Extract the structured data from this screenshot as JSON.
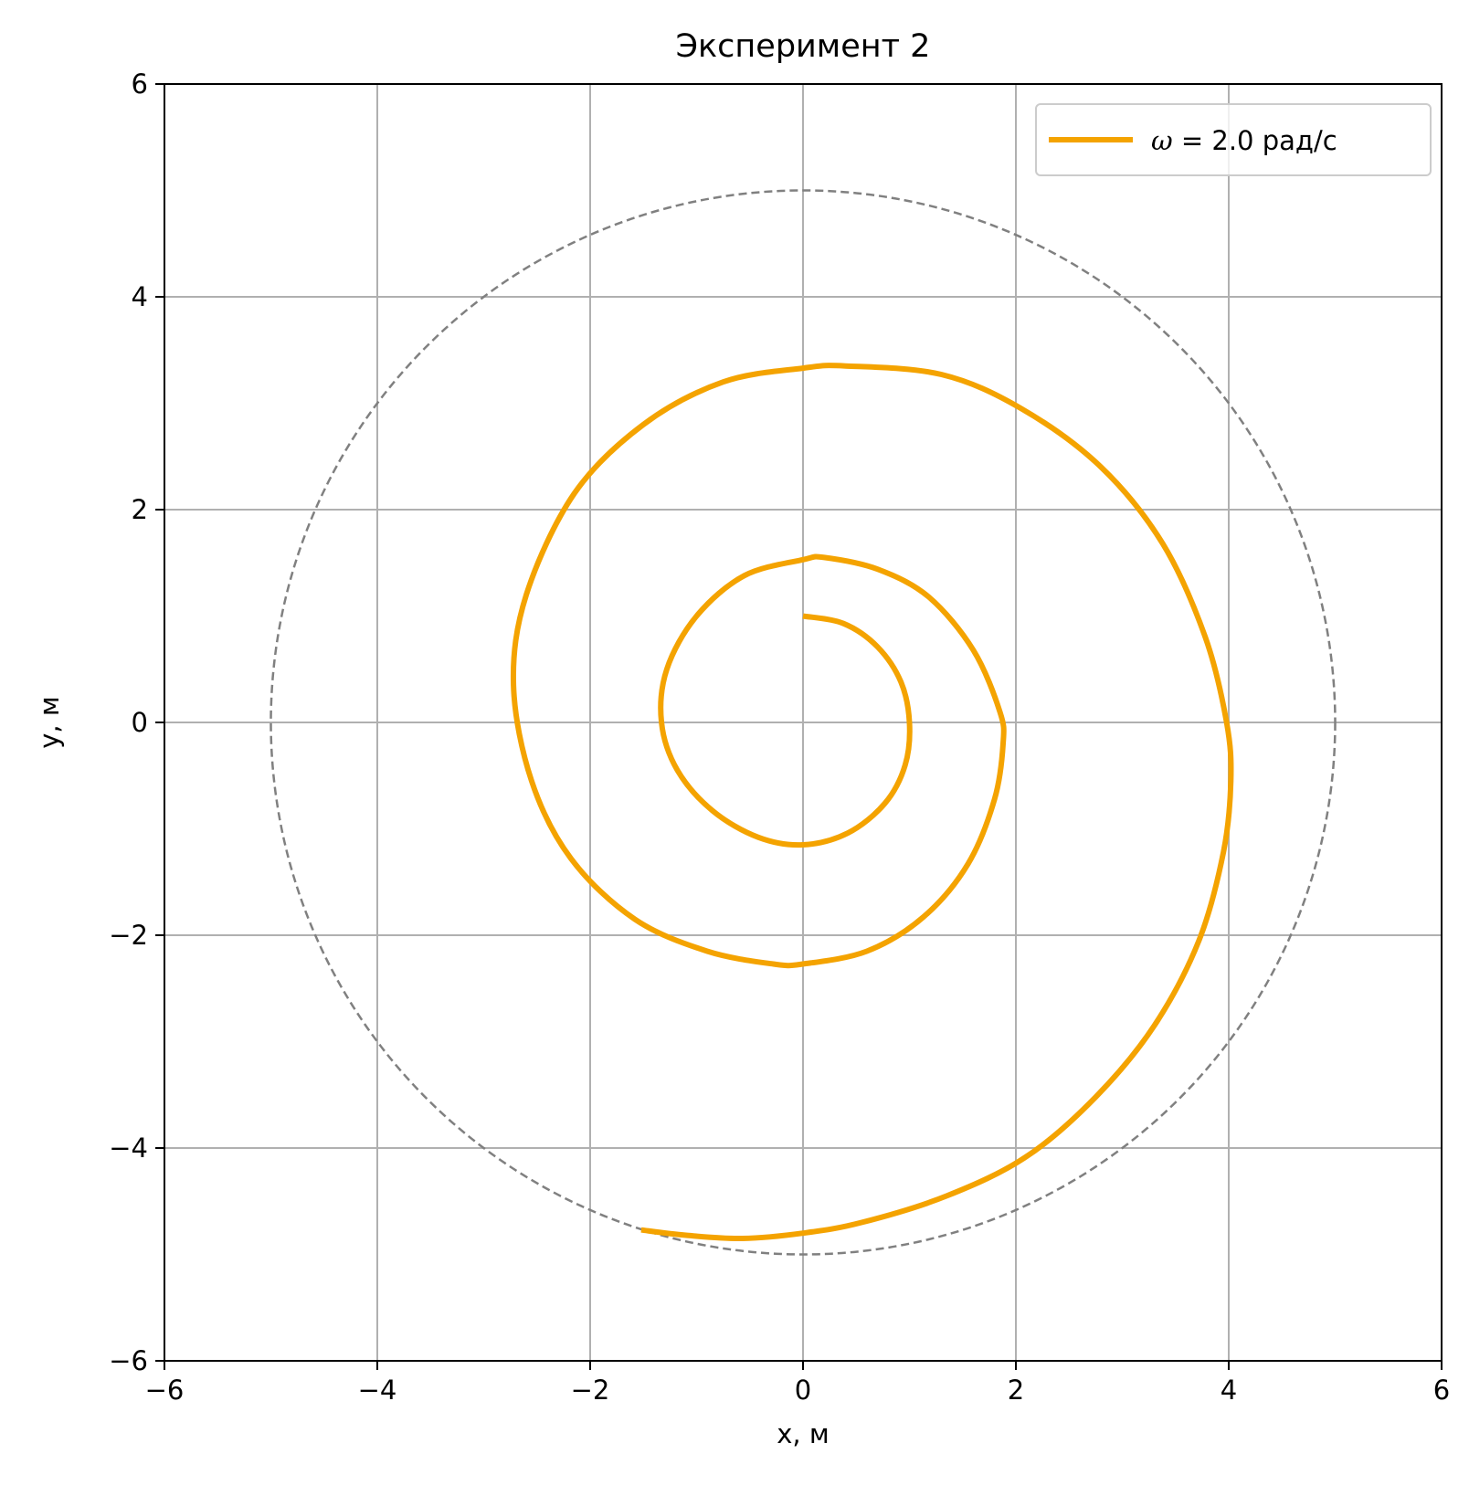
{
  "chart_data": {
    "type": "line",
    "title": "Эксперимент 2",
    "xlabel": "x, м",
    "ylabel": "y, м",
    "xlim": [
      -6,
      6
    ],
    "ylim": [
      -6,
      6
    ],
    "xticks": [
      -6,
      -4,
      -2,
      0,
      2,
      4,
      6
    ],
    "yticks": [
      -6,
      -4,
      -2,
      0,
      2,
      4,
      6
    ],
    "xtick_labels": [
      "−6",
      "−4",
      "−2",
      "0",
      "2",
      "4",
      "6"
    ],
    "ytick_labels": [
      "−6",
      "−4",
      "−2",
      "0",
      "2",
      "4",
      "6"
    ],
    "grid": true,
    "legend_position": "top-right",
    "series": [
      {
        "name": "ω = 2.0 рад/с",
        "legend_symbol": "ω",
        "legend_rest": " = 2.0 рад/с",
        "color": "#f4a300",
        "points": [
          [
            0.0,
            1.0
          ],
          [
            0.38,
            0.93
          ],
          [
            0.7,
            0.71
          ],
          [
            0.92,
            0.38
          ],
          [
            1.0,
            0.0
          ],
          [
            0.96,
            -0.4
          ],
          [
            0.77,
            -0.76
          ],
          [
            0.42,
            -1.04
          ],
          [
            0.0,
            -1.15
          ],
          [
            -0.42,
            -1.08
          ],
          [
            -0.85,
            -0.83
          ],
          [
            -1.18,
            -0.45
          ],
          [
            -1.33,
            0.0
          ],
          [
            -1.28,
            0.5
          ],
          [
            -1.0,
            1.0
          ],
          [
            -0.55,
            1.38
          ],
          [
            0.0,
            1.53
          ],
          [
            0.2,
            1.55
          ],
          [
            0.7,
            1.44
          ],
          [
            1.18,
            1.18
          ],
          [
            1.6,
            0.68
          ],
          [
            1.85,
            0.1
          ],
          [
            1.88,
            -0.2
          ],
          [
            1.8,
            -0.72
          ],
          [
            1.55,
            -1.33
          ],
          [
            1.13,
            -1.83
          ],
          [
            0.6,
            -2.15
          ],
          [
            0.0,
            -2.27
          ],
          [
            -0.28,
            -2.27
          ],
          [
            -0.9,
            -2.15
          ],
          [
            -1.58,
            -1.85
          ],
          [
            -2.18,
            -1.28
          ],
          [
            -2.55,
            -0.55
          ],
          [
            -2.72,
            0.35
          ],
          [
            -2.6,
            1.2
          ],
          [
            -2.15,
            2.15
          ],
          [
            -1.5,
            2.8
          ],
          [
            -0.75,
            3.2
          ],
          [
            0.0,
            3.33
          ],
          [
            0.4,
            3.35
          ],
          [
            1.3,
            3.27
          ],
          [
            2.05,
            2.95
          ],
          [
            2.8,
            2.4
          ],
          [
            3.38,
            1.68
          ],
          [
            3.78,
            0.8
          ],
          [
            3.98,
            0.0
          ],
          [
            4.02,
            -0.55
          ],
          [
            3.95,
            -1.22
          ],
          [
            3.72,
            -2.05
          ],
          [
            3.3,
            -2.85
          ],
          [
            2.75,
            -3.52
          ],
          [
            2.1,
            -4.08
          ],
          [
            1.35,
            -4.45
          ],
          [
            0.55,
            -4.7
          ],
          [
            0.0,
            -4.8
          ],
          [
            -0.57,
            -4.85
          ],
          [
            -1.1,
            -4.82
          ],
          [
            -1.52,
            -4.77
          ]
        ]
      },
      {
        "name": "",
        "style": "dashed",
        "color": "#808080",
        "circle_radius": 5,
        "circle_center": [
          0,
          0
        ]
      }
    ]
  }
}
